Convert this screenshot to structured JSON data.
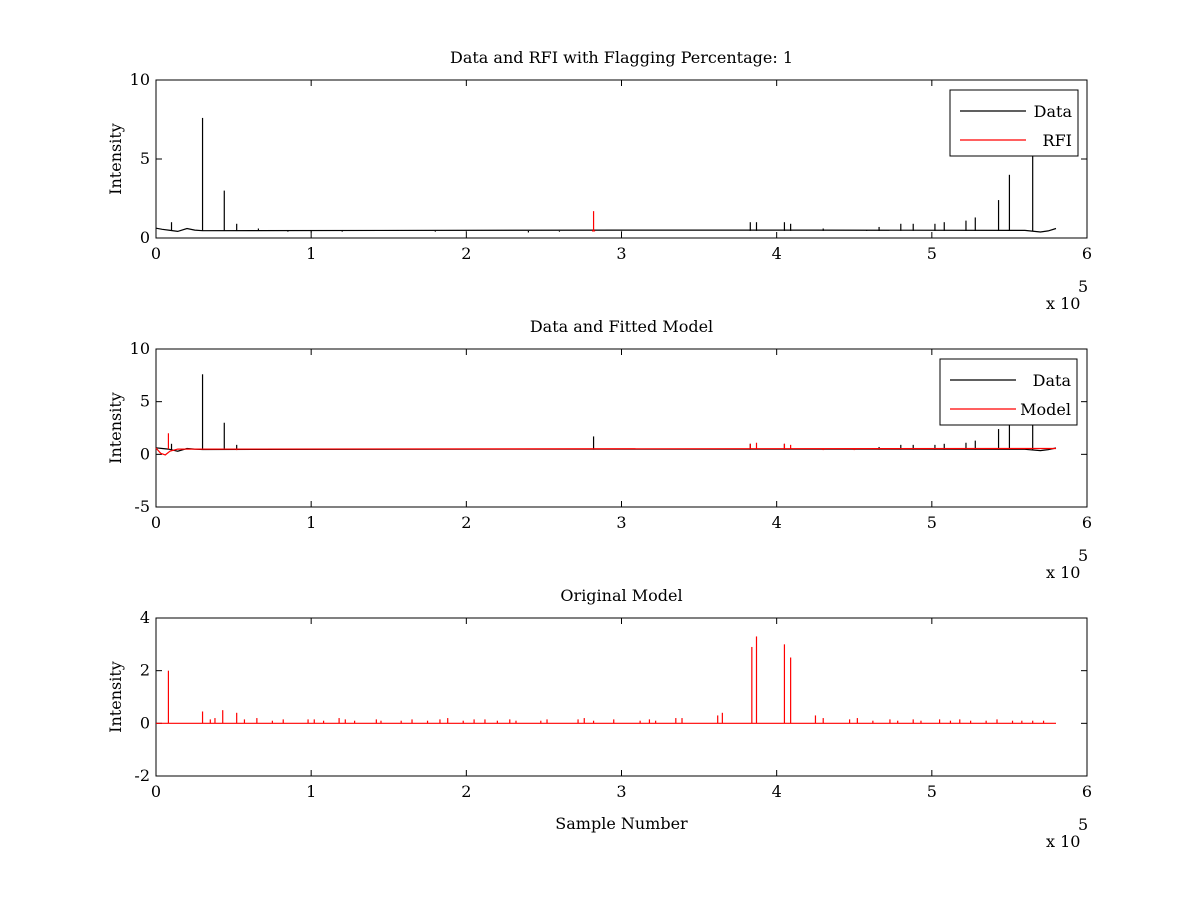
{
  "colors": {
    "data": "#000000",
    "red": "#ff0000",
    "axes": "#000000",
    "background": "#ffffff"
  },
  "chart_data": [
    {
      "type": "line",
      "title": "Data and RFI with Flagging Percentage: 1",
      "xlabel": "",
      "ylabel": "Intensity",
      "xlim": [
        0,
        600000
      ],
      "ylim": [
        0,
        10
      ],
      "x_ticks": [
        0,
        1,
        2,
        3,
        4,
        5,
        6
      ],
      "y_ticks": [
        0,
        5,
        10
      ],
      "x_multiplier": {
        "base": "x 10",
        "exponent": "5"
      },
      "legend": {
        "placement": "top-right",
        "entries": [
          "Data",
          "RFI"
        ]
      },
      "series": [
        {
          "name": "Data",
          "color": "#000000",
          "baseline": 0.45,
          "baseline_shape": [
            [
              0,
              0.62
            ],
            [
              4000,
              0.55
            ],
            [
              8000,
              0.5
            ],
            [
              14000,
              0.42
            ],
            [
              20000,
              0.6
            ],
            [
              25000,
              0.5
            ],
            [
              30000,
              0.46
            ],
            [
              300000,
              0.5
            ],
            [
              420000,
              0.5
            ],
            [
              560000,
              0.48
            ],
            [
              570000,
              0.38
            ],
            [
              575000,
              0.45
            ],
            [
              580000,
              0.6
            ]
          ],
          "spikes": [
            [
              10000,
              1.0
            ],
            [
              30000,
              7.6
            ],
            [
              44000,
              3.0
            ],
            [
              52000,
              0.9
            ],
            [
              66000,
              0.6
            ],
            [
              72000,
              0.5
            ],
            [
              85000,
              0.4
            ],
            [
              100000,
              0.35
            ],
            [
              120000,
              0.4
            ],
            [
              180000,
              0.4
            ],
            [
              200000,
              0.4
            ],
            [
              240000,
              0.35
            ],
            [
              260000,
              0.4
            ],
            [
              300000,
              0.4
            ],
            [
              330000,
              0.45
            ],
            [
              383000,
              1.0
            ],
            [
              387000,
              1.0
            ],
            [
              405000,
              1.0
            ],
            [
              409000,
              0.9
            ],
            [
              430000,
              0.6
            ],
            [
              458000,
              0.5
            ],
            [
              466000,
              0.7
            ],
            [
              480000,
              0.9
            ],
            [
              488000,
              0.9
            ],
            [
              502000,
              0.9
            ],
            [
              508000,
              1.0
            ],
            [
              522000,
              1.1
            ],
            [
              528000,
              1.3
            ],
            [
              543000,
              2.4
            ],
            [
              550000,
              4.0
            ],
            [
              565000,
              5.2
            ]
          ]
        },
        {
          "name": "RFI",
          "color": "#ff0000",
          "baseline": 0.45,
          "baseline_shape": [
            [
              281000,
              0.45
            ],
            [
              283000,
              0.45
            ]
          ],
          "spikes": [
            [
              282000,
              1.7
            ]
          ]
        }
      ]
    },
    {
      "type": "line",
      "title": "Data and Fitted Model",
      "xlabel": "",
      "ylabel": "Intensity",
      "xlim": [
        0,
        600000
      ],
      "ylim": [
        -5,
        10
      ],
      "x_ticks": [
        0,
        1,
        2,
        3,
        4,
        5,
        6
      ],
      "y_ticks": [
        -5,
        0,
        5,
        10
      ],
      "x_multiplier": {
        "base": "x 10",
        "exponent": "5"
      },
      "legend": {
        "placement": "top-right",
        "entries": [
          "Data",
          "Model"
        ]
      },
      "series": [
        {
          "name": "Data",
          "color": "#000000",
          "baseline": 0.45,
          "baseline_shape": [
            [
              0,
              0.62
            ],
            [
              4000,
              0.55
            ],
            [
              8000,
              0.5
            ],
            [
              14000,
              0.3
            ],
            [
              20000,
              0.55
            ],
            [
              25000,
              0.5
            ],
            [
              30000,
              0.46
            ],
            [
              300000,
              0.5
            ],
            [
              420000,
              0.5
            ],
            [
              560000,
              0.48
            ],
            [
              570000,
              0.35
            ],
            [
              575000,
              0.45
            ],
            [
              580000,
              0.6
            ]
          ],
          "spikes": [
            [
              10000,
              1.0
            ],
            [
              30000,
              7.6
            ],
            [
              44000,
              3.0
            ],
            [
              52000,
              0.9
            ],
            [
              282000,
              1.7
            ],
            [
              383000,
              1.0
            ],
            [
              405000,
              1.0
            ],
            [
              466000,
              0.7
            ],
            [
              480000,
              0.9
            ],
            [
              488000,
              0.9
            ],
            [
              502000,
              0.9
            ],
            [
              508000,
              1.0
            ],
            [
              522000,
              1.1
            ],
            [
              528000,
              1.3
            ],
            [
              543000,
              2.4
            ],
            [
              550000,
              4.0
            ],
            [
              565000,
              5.2
            ]
          ]
        },
        {
          "name": "Model",
          "color": "#ff0000",
          "baseline": 0.5,
          "baseline_shape": [
            [
              0,
              0.6
            ],
            [
              3000,
              0.1
            ],
            [
              6000,
              -0.05
            ],
            [
              9000,
              0.3
            ],
            [
              14000,
              0.5
            ],
            [
              580000,
              0.55
            ]
          ],
          "spikes": [
            [
              8000,
              2.0
            ],
            [
              30000,
              0.5
            ],
            [
              44000,
              0.5
            ],
            [
              52000,
              0.4
            ],
            [
              383000,
              1.0
            ],
            [
              387000,
              1.1
            ],
            [
              405000,
              1.0
            ],
            [
              409000,
              0.9
            ],
            [
              430000,
              0.4
            ],
            [
              450000,
              0.4
            ]
          ]
        }
      ]
    },
    {
      "type": "line",
      "title": "Original Model",
      "xlabel": "Sample Number",
      "ylabel": "Intensity",
      "xlim": [
        0,
        600000
      ],
      "ylim": [
        -2,
        4
      ],
      "x_ticks": [
        0,
        1,
        2,
        3,
        4,
        5,
        6
      ],
      "y_ticks": [
        -2,
        0,
        2,
        4
      ],
      "x_multiplier": {
        "base": "x 10",
        "exponent": "5"
      },
      "series": [
        {
          "name": "",
          "color": "#ff0000",
          "baseline": 0,
          "baseline_shape": [
            [
              0,
              0
            ],
            [
              580000,
              0
            ]
          ],
          "spikes": [
            [
              8000,
              2.0
            ],
            [
              30000,
              0.45
            ],
            [
              35000,
              0.15
            ],
            [
              38000,
              0.2
            ],
            [
              43000,
              0.5
            ],
            [
              52000,
              0.4
            ],
            [
              57000,
              0.15
            ],
            [
              65000,
              0.2
            ],
            [
              75000,
              0.1
            ],
            [
              82000,
              0.15
            ],
            [
              98000,
              0.15
            ],
            [
              102000,
              0.15
            ],
            [
              108000,
              0.1
            ],
            [
              118000,
              0.2
            ],
            [
              122000,
              0.15
            ],
            [
              128000,
              0.1
            ],
            [
              142000,
              0.15
            ],
            [
              145000,
              0.1
            ],
            [
              158000,
              0.1
            ],
            [
              165000,
              0.15
            ],
            [
              175000,
              0.1
            ],
            [
              183000,
              0.15
            ],
            [
              188000,
              0.2
            ],
            [
              198000,
              0.1
            ],
            [
              205000,
              0.15
            ],
            [
              212000,
              0.15
            ],
            [
              220000,
              0.1
            ],
            [
              228000,
              0.15
            ],
            [
              232000,
              0.1
            ],
            [
              248000,
              0.1
            ],
            [
              252000,
              0.15
            ],
            [
              272000,
              0.15
            ],
            [
              276000,
              0.2
            ],
            [
              282000,
              0.1
            ],
            [
              295000,
              0.15
            ],
            [
              312000,
              0.1
            ],
            [
              318000,
              0.15
            ],
            [
              322000,
              0.1
            ],
            [
              335000,
              0.2
            ],
            [
              339000,
              0.2
            ],
            [
              362000,
              0.3
            ],
            [
              365000,
              0.4
            ],
            [
              384000,
              2.9
            ],
            [
              387000,
              3.3
            ],
            [
              405000,
              3.0
            ],
            [
              409000,
              2.5
            ],
            [
              425000,
              0.3
            ],
            [
              430000,
              0.2
            ],
            [
              447000,
              0.15
            ],
            [
              452000,
              0.2
            ],
            [
              462000,
              0.1
            ],
            [
              473000,
              0.15
            ],
            [
              478000,
              0.1
            ],
            [
              488000,
              0.15
            ],
            [
              493000,
              0.1
            ],
            [
              505000,
              0.15
            ],
            [
              512000,
              0.1
            ],
            [
              518000,
              0.15
            ],
            [
              525000,
              0.1
            ],
            [
              535000,
              0.1
            ],
            [
              542000,
              0.15
            ],
            [
              552000,
              0.1
            ],
            [
              558000,
              0.1
            ],
            [
              565000,
              0.1
            ],
            [
              572000,
              0.1
            ]
          ]
        }
      ]
    }
  ]
}
